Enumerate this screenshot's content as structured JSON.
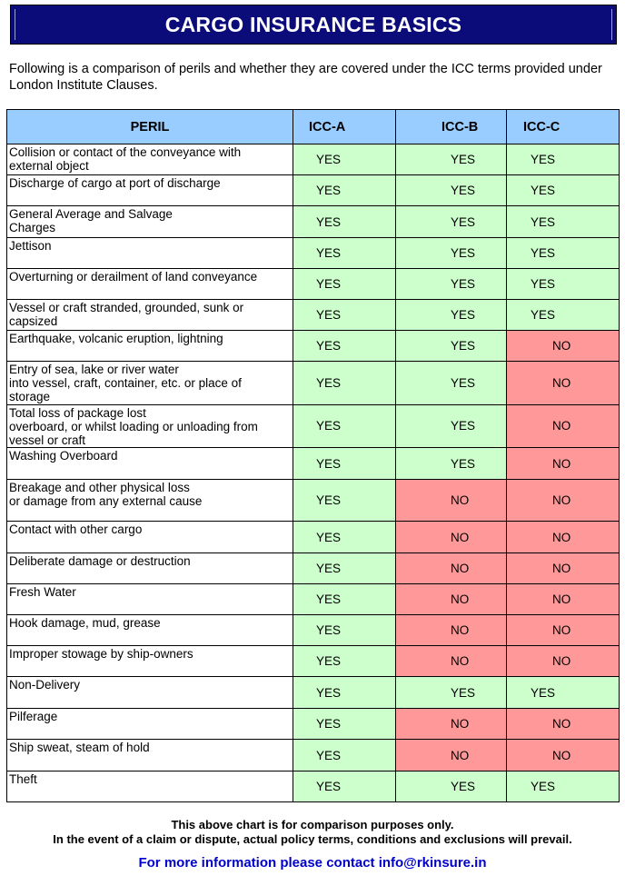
{
  "title": "CARGO INSURANCE BASICS",
  "intro": "Following is a comparison of perils and whether they are covered under the ICC terms provided under London Institute Clauses.",
  "table": {
    "headers": [
      "PERIL",
      "ICC-A",
      "ICC-B",
      "ICC-C"
    ],
    "rows": [
      {
        "peril": "Collision or contact of the conveyance with\nexternal object",
        "a": "YES",
        "b": "YES",
        "c": "YES"
      },
      {
        "peril": "Discharge of cargo at port of discharge",
        "a": "YES",
        "b": "YES",
        "c": "YES"
      },
      {
        "peril": "General Average and Salvage\nCharges",
        "a": "YES",
        "b": "YES",
        "c": "YES"
      },
      {
        "peril": "Jettison",
        "a": "YES",
        "b": "YES",
        "c": "YES"
      },
      {
        "peril": "Overturning or derailment of land conveyance",
        "a": "YES",
        "b": "YES",
        "c": "YES"
      },
      {
        "peril": "Vessel or craft stranded, grounded, sunk or\ncapsized",
        "a": "YES",
        "b": "YES",
        "c": "YES"
      },
      {
        "peril": "Earthquake, volcanic eruption, lightning",
        "a": "YES",
        "b": "YES",
        "c": "NO"
      },
      {
        "peril": "Entry of sea, lake or river water\ninto vessel, craft, container, etc. or place of\nstorage",
        "a": "YES",
        "b": "YES",
        "c": "NO"
      },
      {
        "peril": "Total loss of package lost\noverboard, or whilst loading or unloading from\nvessel or craft",
        "a": "YES",
        "b": "YES",
        "c": "NO"
      },
      {
        "peril": "Washing Overboard",
        "a": "YES",
        "b": "YES",
        "c": "NO"
      },
      {
        "peril": "Breakage and other physical loss\nor damage from any external cause",
        "a": "YES",
        "b": "NO",
        "c": "NO"
      },
      {
        "peril": "Contact with other cargo",
        "a": "YES",
        "b": "NO",
        "c": "NO"
      },
      {
        "peril": "Deliberate damage or destruction",
        "a": "YES",
        "b": "NO",
        "c": "NO"
      },
      {
        "peril": "Fresh Water",
        "a": "YES",
        "b": "NO",
        "c": "NO"
      },
      {
        "peril": "Hook damage, mud, grease",
        "a": "YES",
        "b": "NO",
        "c": "NO"
      },
      {
        "peril": "Improper stowage by ship-owners",
        "a": "YES",
        "b": "NO",
        "c": "NO"
      },
      {
        "peril": "Non-Delivery",
        "a": "YES",
        "b": "YES",
        "c": "YES"
      },
      {
        "peril": "Pilferage",
        "a": "YES",
        "b": "NO",
        "c": "NO"
      },
      {
        "peril": "Ship sweat, steam of hold",
        "a": "YES",
        "b": "NO",
        "c": "NO"
      },
      {
        "peril": "Theft",
        "a": "YES",
        "b": "YES",
        "c": "YES"
      }
    ]
  },
  "footnote": {
    "line1": "This above chart is for comparison purposes only.",
    "line2": "In the event of a claim or dispute, actual policy terms, conditions and exclusions will prevail."
  },
  "contact": "For more information please contact info@rkinsure.in",
  "colors": {
    "title_bg": "#0b0b7a",
    "header_bg": "#99ccff",
    "yes_bg": "#ccffcc",
    "no_bg": "#ff9999",
    "contact_text": "#0000cc"
  }
}
